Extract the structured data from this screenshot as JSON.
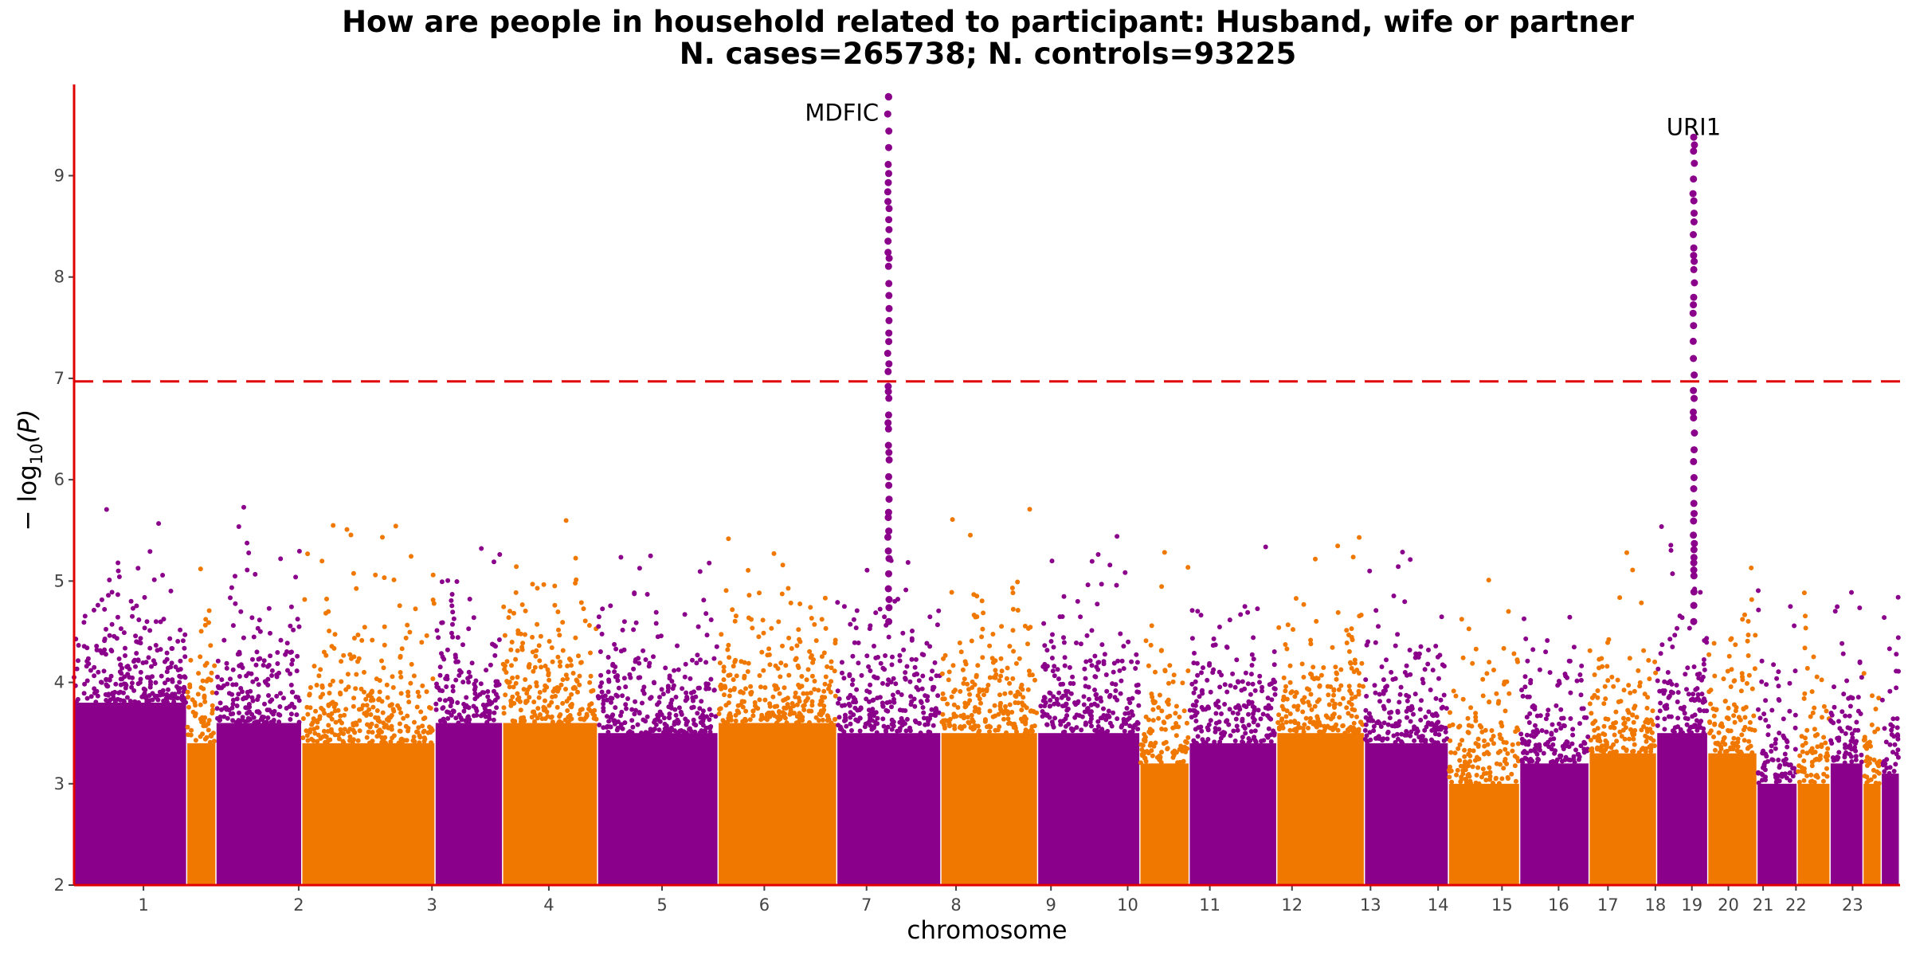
{
  "chart_data": {
    "type": "scatter",
    "title_line1": "How are people in household related to participant: Husband, wife or partner",
    "title_line2": "N. cases=265738; N. controls=93225",
    "xlabel": "chromosome",
    "ylabel_prefix": "− log",
    "ylabel_sub": "10",
    "ylabel_suffix": "(P)",
    "ylim": [
      2,
      9.9
    ],
    "yticks": [
      2,
      3,
      4,
      5,
      6,
      7,
      8,
      9
    ],
    "grid": false,
    "threshold": 6.97,
    "colors": {
      "odd": "#8B008B",
      "even": "#F07800",
      "threshold": "#E00000",
      "axis": "#E00000"
    },
    "chromosomes": [
      {
        "label": "1",
        "start": 0.0,
        "end": 0.062,
        "top": 3.8
      },
      {
        "label": "",
        "start": 0.062,
        "end": 0.078,
        "top": 3.4
      },
      {
        "label": "",
        "start": 0.078,
        "end": 0.125,
        "top": 3.6
      },
      {
        "label": "2",
        "start": 0.125,
        "end": 0.198,
        "top": 3.4
      },
      {
        "label": "",
        "start": 0.198,
        "end": 0.235,
        "top": 3.6
      },
      {
        "label": "3",
        "start": 0.235,
        "end": 0.287,
        "top": 3.6
      },
      {
        "label": "4",
        "start": 0.287,
        "end": 0.353,
        "top": 3.5
      },
      {
        "label": "5",
        "start": 0.353,
        "end": 0.418,
        "top": 3.6
      },
      {
        "label": "6",
        "start": 0.418,
        "end": 0.475,
        "top": 3.5
      },
      {
        "label": "7",
        "start": 0.475,
        "end": 0.528,
        "top": 3.5
      },
      {
        "label": "8",
        "start": 0.528,
        "end": 0.584,
        "top": 3.5
      },
      {
        "label": "9",
        "start": 0.584,
        "end": 0.611,
        "top": 3.2
      },
      {
        "label": "10",
        "start": 0.611,
        "end": 0.659,
        "top": 3.4
      },
      {
        "label": "11",
        "start": 0.659,
        "end": 0.707,
        "top": 3.5
      },
      {
        "label": "12",
        "start": 0.707,
        "end": 0.753,
        "top": 3.4
      },
      {
        "label": "13",
        "start": 0.753,
        "end": 0.792,
        "top": 3.0
      },
      {
        "label": "14",
        "start": 0.792,
        "end": 0.83,
        "top": 3.2
      },
      {
        "label": "15",
        "start": 0.83,
        "end": 0.867,
        "top": 3.3
      },
      {
        "label": "16",
        "start": 0.867,
        "end": 0.895,
        "top": 3.5
      },
      {
        "label": "17",
        "start": 0.895,
        "end": 0.922,
        "top": 3.3
      },
      {
        "label": "18",
        "start": 0.922,
        "end": 0.944,
        "top": 3.0
      },
      {
        "label": "19",
        "start": 0.944,
        "end": 0.962,
        "top": 3.0
      },
      {
        "label": "20",
        "start": 0.962,
        "end": 0.98,
        "top": 3.2
      },
      {
        "label": "21",
        "start": 0.98,
        "end": 0.99,
        "top": 3.0
      },
      {
        "label": "22",
        "start": 0.99,
        "end": 1.0,
        "top": 3.1
      }
    ],
    "axis_labels": [
      {
        "label": "1",
        "pos": 0.038
      },
      {
        "label": "2",
        "pos": 0.123
      },
      {
        "label": "3",
        "pos": 0.196
      },
      {
        "label": "4",
        "pos": 0.26
      },
      {
        "label": "5",
        "pos": 0.322
      },
      {
        "label": "6",
        "pos": 0.378
      },
      {
        "label": "7",
        "pos": 0.434
      },
      {
        "label": "8",
        "pos": 0.483
      },
      {
        "label": "9",
        "pos": 0.535
      },
      {
        "label": "10",
        "pos": 0.577
      },
      {
        "label": "11",
        "pos": 0.622
      },
      {
        "label": "12",
        "pos": 0.667
      },
      {
        "label": "13",
        "pos": 0.71
      },
      {
        "label": "14",
        "pos": 0.747
      },
      {
        "label": "15",
        "pos": 0.782
      },
      {
        "label": "16",
        "pos": 0.813
      },
      {
        "label": "17",
        "pos": 0.84
      },
      {
        "label": "18",
        "pos": 0.866
      },
      {
        "label": "19",
        "pos": 0.886
      },
      {
        "label": "20",
        "pos": 0.906
      },
      {
        "label": "21",
        "pos": 0.925
      },
      {
        "label": "22",
        "pos": 0.943
      },
      {
        "label": "23",
        "pos": 0.974
      }
    ],
    "peaks": [
      {
        "label": "MDFIC",
        "pos": 0.446,
        "value": 9.78,
        "label_at": 9.62
      },
      {
        "label": "URI1",
        "pos": 0.887,
        "value": 9.38,
        "label_at": 9.48
      }
    ]
  }
}
